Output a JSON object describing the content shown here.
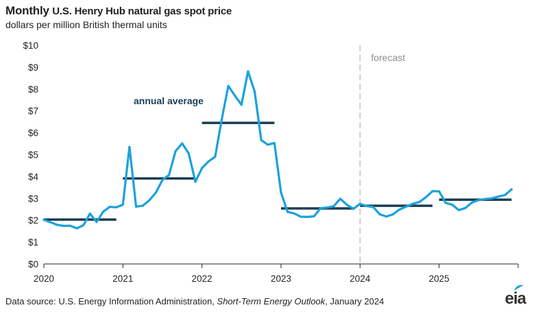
{
  "header": {
    "title_part1": "Monthly",
    "title_part2": "U.S. Henry Hub natural gas spot price",
    "subtitle": "dollars per million British thermal units"
  },
  "footer": {
    "source_prefix": "Data source: U.S. Energy Information Administration, ",
    "source_italic": "Short-Term Energy Outlook",
    "source_suffix": ", January 2024",
    "logo_text": "eia"
  },
  "colors": {
    "line": "#1ba1dc",
    "average": "#1a3d56",
    "forecast_divider": "#b5b5b5",
    "axis": "#222222"
  },
  "chart_data": {
    "type": "line",
    "title": "Monthly U.S. Henry Hub natural gas spot price",
    "ylabel": "dollars per million British thermal units",
    "ylim": [
      0,
      10
    ],
    "yticks": [
      "$0",
      "$1",
      "$2",
      "$3",
      "$4",
      "$5",
      "$6",
      "$7",
      "$8",
      "$9",
      "$10"
    ],
    "xlim": [
      "2020-01",
      "2026-01"
    ],
    "xticks": [
      "2020",
      "2021",
      "2022",
      "2023",
      "2024",
      "2025"
    ],
    "grid": false,
    "series": [
      {
        "start": "2020-01",
        "values": [
          2.02,
          1.91,
          1.79,
          1.74,
          1.75,
          1.63,
          1.77,
          2.3,
          1.92,
          2.39,
          2.61,
          2.59,
          2.71,
          5.35,
          2.62,
          2.66,
          2.91,
          3.26,
          3.84,
          4.07,
          5.16,
          5.51,
          5.05,
          3.76,
          4.38,
          4.69,
          4.9,
          6.6,
          8.14,
          7.7,
          7.28,
          8.81,
          7.88,
          5.66,
          5.45,
          5.53,
          3.27,
          2.38,
          2.31,
          2.16,
          2.15,
          2.18,
          2.55,
          2.58,
          2.64,
          2.98,
          2.71,
          2.52,
          2.75,
          2.65,
          2.6,
          2.27,
          2.17,
          2.27,
          2.49,
          2.62,
          2.75,
          2.83,
          3.05,
          3.33,
          3.32,
          2.79,
          2.71,
          2.46,
          2.56,
          2.81,
          2.92,
          2.97,
          3.0,
          3.08,
          3.15,
          3.41
        ]
      }
    ],
    "annual_average": {
      "label": "annual average",
      "years": [
        "2020",
        "2021",
        "2022",
        "2023",
        "2024",
        "2025"
      ],
      "values": [
        2.03,
        3.91,
        6.45,
        2.54,
        2.66,
        2.94
      ]
    },
    "forecast": {
      "label": "forecast",
      "start": "2024-01"
    }
  }
}
